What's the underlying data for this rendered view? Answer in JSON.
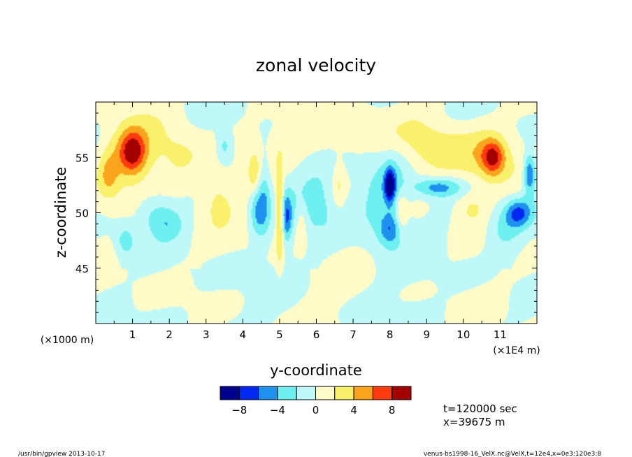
{
  "chart_data": {
    "type": "heatmap",
    "title": "zonal velocity",
    "xlabel": "y-coordinate",
    "ylabel": "z-coordinate",
    "x_scale_note": "(×1E4 m)",
    "y_scale_note": "(×1000 m)",
    "xlim": [
      0,
      12
    ],
    "ylim": [
      40,
      60
    ],
    "x_ticks": [
      1,
      2,
      3,
      4,
      5,
      6,
      7,
      8,
      9,
      10,
      11
    ],
    "x_tick_labels": [
      "1",
      "2",
      "3",
      "4",
      "5",
      "6",
      "7",
      "8",
      "9",
      "10",
      "11"
    ],
    "y_ticks": [
      45,
      50,
      55
    ],
    "y_tick_labels": [
      "45",
      "50",
      "55"
    ],
    "grid": false,
    "colorbar": {
      "levels": [
        -10,
        -8,
        -6,
        -4,
        -2,
        0,
        2,
        4,
        6,
        8,
        10
      ],
      "tick_values": [
        -8,
        -4,
        0,
        4,
        8
      ],
      "tick_labels": [
        "−8",
        "−4",
        "0",
        "4",
        "8"
      ],
      "colors": [
        "#00008f",
        "#0028f0",
        "#1e90ee",
        "#6ff0f0",
        "#bff8f8",
        "#fffbc9",
        "#f9f16c",
        "#f9a41c",
        "#ff3b0f",
        "#a30000"
      ]
    },
    "features": [
      {
        "y": 1.0,
        "z": 55.5,
        "value": 7,
        "sy": 0.25,
        "sz": 1.3
      },
      {
        "y": 1.0,
        "z": 55.3,
        "value": 3,
        "sy": 0.6,
        "sz": 2.4
      },
      {
        "y": 0.35,
        "z": 53.5,
        "value": 3,
        "sy": 0.18,
        "sz": 1.5
      },
      {
        "y": 2.3,
        "z": 55.0,
        "value": 2.5,
        "sy": 0.45,
        "sz": 1.8
      },
      {
        "y": 3.3,
        "z": 51.5,
        "value": 2.6,
        "sy": 0.35,
        "sz": 1.8
      },
      {
        "y": 1.6,
        "z": 50.0,
        "value": -2.5,
        "sy": 0.35,
        "sz": 1.2
      },
      {
        "y": 0.8,
        "z": 47.5,
        "value": -3,
        "sy": 0.18,
        "sz": 1.0
      },
      {
        "y": 2.0,
        "z": 49.0,
        "value": -2.5,
        "sy": 0.3,
        "sz": 1.0
      },
      {
        "y": 3.5,
        "z": 56.0,
        "value": -3,
        "sy": 0.15,
        "sz": 1.0
      },
      {
        "y": 4.4,
        "z": 50.3,
        "value": -4.5,
        "sy": 0.15,
        "sz": 1.6
      },
      {
        "y": 4.6,
        "z": 51.5,
        "value": -3,
        "sy": 0.12,
        "sz": 2.5
      },
      {
        "y": 5.0,
        "z": 50.0,
        "value": 5.5,
        "sy": 0.07,
        "sz": 3.0
      },
      {
        "y": 5.2,
        "z": 49.5,
        "value": -5,
        "sy": 0.1,
        "sz": 1.6
      },
      {
        "y": 4.3,
        "z": 53.5,
        "value": 3,
        "sy": 0.12,
        "sz": 1.5
      },
      {
        "y": 5.6,
        "z": 49.0,
        "value": 2.5,
        "sy": 0.12,
        "sz": 1.5
      },
      {
        "y": 6.6,
        "z": 52.5,
        "value": 2.5,
        "sy": 0.12,
        "sz": 1.5
      },
      {
        "y": 8.0,
        "z": 52.5,
        "value": -8.5,
        "sy": 0.1,
        "sz": 1.0
      },
      {
        "y": 8.1,
        "z": 52.0,
        "value": -3,
        "sy": 0.3,
        "sz": 3.0
      },
      {
        "y": 8.0,
        "z": 48.5,
        "value": -4.5,
        "sy": 0.22,
        "sz": 1.0
      },
      {
        "y": 8.3,
        "z": 50.0,
        "value": 3,
        "sy": 0.12,
        "sz": 1.5
      },
      {
        "y": 9.3,
        "z": 52.3,
        "value": -5,
        "sy": 0.45,
        "sz": 0.6
      },
      {
        "y": 9.3,
        "z": 55.5,
        "value": 3,
        "sy": 0.6,
        "sz": 1.7
      },
      {
        "y": 10.8,
        "z": 55.0,
        "value": 6.5,
        "sy": 0.22,
        "sz": 1.1
      },
      {
        "y": 10.6,
        "z": 55.0,
        "value": 3,
        "sy": 0.55,
        "sz": 2.2
      },
      {
        "y": 11.5,
        "z": 50.0,
        "value": -6,
        "sy": 0.25,
        "sz": 0.9
      },
      {
        "y": 11.1,
        "z": 48.5,
        "value": -3,
        "sy": 0.35,
        "sz": 1.5
      },
      {
        "y": 11.8,
        "z": 53.5,
        "value": -7,
        "sy": 0.12,
        "sz": 1.3
      },
      {
        "y": 10.2,
        "z": 50.5,
        "value": 2.2,
        "sy": 0.3,
        "sz": 1.0
      },
      {
        "y": 6.0,
        "z": 51.0,
        "value": -2.4,
        "sy": 0.5,
        "sz": 2.5
      },
      {
        "y": 7.5,
        "z": 51.5,
        "value": -2.4,
        "sy": 0.35,
        "sz": 3.0
      },
      {
        "y": 6.8,
        "z": 57.0,
        "value": 2.2,
        "sy": 1.2,
        "sz": 1.5
      }
    ]
  },
  "info": {
    "time": "t=120000 sec",
    "position": "x=39675 m"
  },
  "footer": {
    "left": "/usr/bin/gpview   2013-10-17",
    "right": "venus-bs1998-16_VelX.nc@VelX,t=12e4,x=0e3:120e3:8"
  }
}
